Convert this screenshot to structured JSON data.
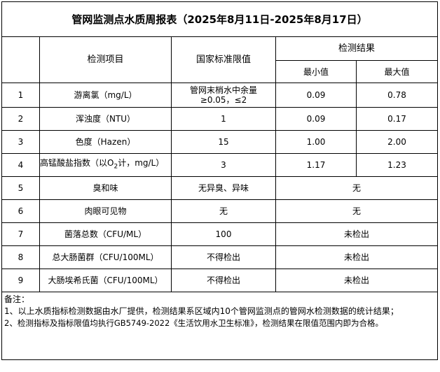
{
  "title": "管网监测点水质周报表（2025年8月11日-2025年8月17日）",
  "headers": {
    "item": "检测项目",
    "standard": "国家标准限值",
    "result": "检测结果",
    "min": "最小值",
    "max": "最大值"
  },
  "rows": [
    {
      "no": "1",
      "item": "游离氯（mg/L）",
      "standard": "管网末梢水中余量≥0.05，≤2",
      "min": "0.09",
      "max": "0.78"
    },
    {
      "no": "2",
      "item": "浑浊度（NTU）",
      "standard": "1",
      "min": "0.09",
      "max": "0.17"
    },
    {
      "no": "3",
      "item": "色度（Hazen）",
      "standard": "15",
      "min": "1.00",
      "max": "2.00"
    },
    {
      "no": "4",
      "item_pre": "高锰酸盐指数（以O",
      "item_sub": "2",
      "item_post": "计，mg/L）",
      "standard": "3",
      "min": "1.17",
      "max": "1.23"
    },
    {
      "no": "5",
      "item": "臭和味",
      "standard": "无异臭、异味",
      "result": "无"
    },
    {
      "no": "6",
      "item": "肉眼可见物",
      "standard": "无",
      "result": "无"
    },
    {
      "no": "7",
      "item": "菌落总数（CFU/ML）",
      "standard": "100",
      "result": "未检出"
    },
    {
      "no": "8",
      "item": "总大肠菌群（CFU/100ML）",
      "standard": "不得检出",
      "result": "未检出"
    },
    {
      "no": "9",
      "item": "大肠埃希氏菌（CFU/100ML）",
      "standard": "不得检出",
      "result": "未检出"
    }
  ],
  "notes": {
    "heading": "备注：",
    "line1": "1、以上水质指标检测数据由水厂提供，检测结果系区域内10个管网监测点的管网水检测数据的统计结果；",
    "line2": "2、检测指标及指标限值均执行GB5749-2022《生活饮用水卫生标准》，检测结果在限值范围内即为合格。"
  }
}
